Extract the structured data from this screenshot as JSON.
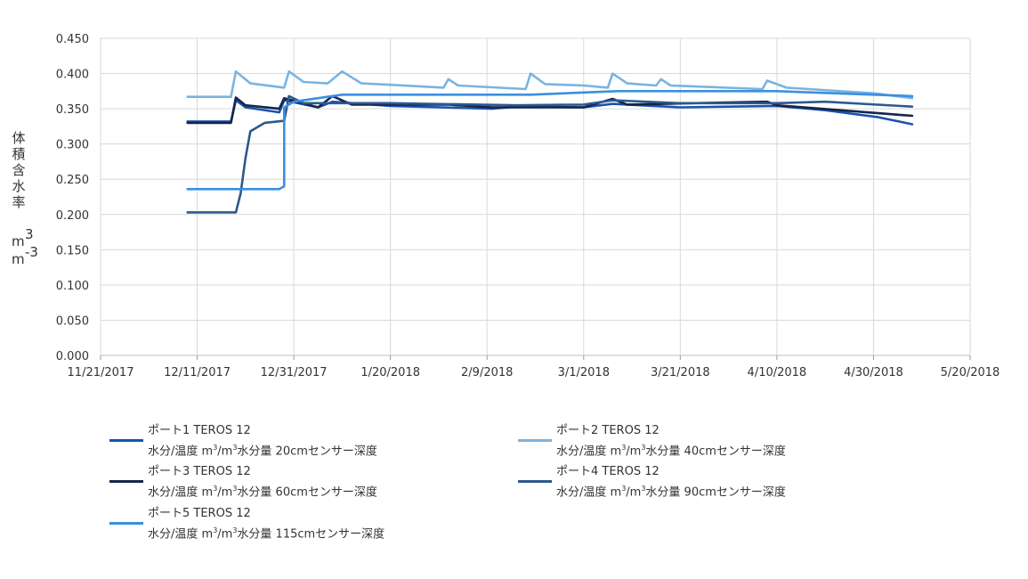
{
  "chart_data": {
    "type": "line",
    "ylabel": "体積含水率",
    "yunit_top": "m3",
    "yunit_bottom": "m-3",
    "ylim": [
      0.0,
      0.45
    ],
    "yticks": [
      "0.000",
      "0.050",
      "0.100",
      "0.150",
      "0.200",
      "0.250",
      "0.300",
      "0.350",
      "0.400",
      "0.450"
    ],
    "xlim": [
      "2017-11-21",
      "2018-05-20"
    ],
    "xticks": [
      "11/21/2017",
      "12/11/2017",
      "12/31/2017",
      "1/20/2018",
      "2/9/2018",
      "3/1/2018",
      "3/21/2018",
      "4/10/2018",
      "4/30/2018",
      "5/20/2018"
    ],
    "grid": true,
    "legend_position": "bottom",
    "series": [
      {
        "name": "ポート1 TEROS 12 水分/温度 m3/m3水分量 20cmセンサー深度",
        "color": "#1a53b0",
        "points": [
          [
            "2017-12-09",
            0.332
          ],
          [
            "2017-12-18",
            0.332
          ],
          [
            "2017-12-19",
            0.362
          ],
          [
            "2017-12-21",
            0.352
          ],
          [
            "2017-12-28",
            0.345
          ],
          [
            "2017-12-29",
            0.362
          ],
          [
            "2018-01-05",
            0.352
          ],
          [
            "2018-01-08",
            0.36
          ],
          [
            "2018-01-20",
            0.354
          ],
          [
            "2018-02-10",
            0.35
          ],
          [
            "2018-02-15",
            0.353
          ],
          [
            "2018-03-01",
            0.352
          ],
          [
            "2018-03-07",
            0.357
          ],
          [
            "2018-03-21",
            0.352
          ],
          [
            "2018-04-10",
            0.354
          ],
          [
            "2018-04-20",
            0.348
          ],
          [
            "2018-05-01",
            0.338
          ],
          [
            "2018-05-08",
            0.328
          ]
        ]
      },
      {
        "name": "ポート2 TEROS 12 水分/温度 m3/m3水分量 40cmセンサー深度",
        "color": "#7ab3e0",
        "points": [
          [
            "2017-12-09",
            0.367
          ],
          [
            "2017-12-18",
            0.367
          ],
          [
            "2017-12-19",
            0.403
          ],
          [
            "2017-12-22",
            0.386
          ],
          [
            "2017-12-29",
            0.38
          ],
          [
            "2017-12-30",
            0.403
          ],
          [
            "2018-01-02",
            0.388
          ],
          [
            "2018-01-07",
            0.386
          ],
          [
            "2018-01-10",
            0.403
          ],
          [
            "2018-01-14",
            0.386
          ],
          [
            "2018-01-20",
            0.384
          ],
          [
            "2018-01-31",
            0.38
          ],
          [
            "2018-02-01",
            0.392
          ],
          [
            "2018-02-03",
            0.383
          ],
          [
            "2018-02-17",
            0.378
          ],
          [
            "2018-02-18",
            0.4
          ],
          [
            "2018-02-21",
            0.385
          ],
          [
            "2018-03-01",
            0.383
          ],
          [
            "2018-03-06",
            0.38
          ],
          [
            "2018-03-07",
            0.4
          ],
          [
            "2018-03-10",
            0.386
          ],
          [
            "2018-03-16",
            0.383
          ],
          [
            "2018-03-17",
            0.392
          ],
          [
            "2018-03-19",
            0.383
          ],
          [
            "2018-04-07",
            0.378
          ],
          [
            "2018-04-08",
            0.39
          ],
          [
            "2018-04-12",
            0.38
          ],
          [
            "2018-04-30",
            0.372
          ],
          [
            "2018-05-08",
            0.365
          ]
        ]
      },
      {
        "name": "ポート3 TEROS 12 水分/温度 m3/m3水分量 60cmセンサー深度",
        "color": "#15244a",
        "points": [
          [
            "2017-12-09",
            0.33
          ],
          [
            "2017-12-18",
            0.33
          ],
          [
            "2017-12-19",
            0.366
          ],
          [
            "2017-12-21",
            0.355
          ],
          [
            "2017-12-28",
            0.35
          ],
          [
            "2017-12-29",
            0.365
          ],
          [
            "2018-01-05",
            0.352
          ],
          [
            "2018-01-08",
            0.368
          ],
          [
            "2018-01-12",
            0.356
          ],
          [
            "2018-02-01",
            0.356
          ],
          [
            "2018-02-10",
            0.352
          ],
          [
            "2018-03-01",
            0.352
          ],
          [
            "2018-03-07",
            0.364
          ],
          [
            "2018-03-10",
            0.356
          ],
          [
            "2018-04-08",
            0.36
          ],
          [
            "2018-04-10",
            0.355
          ],
          [
            "2018-05-08",
            0.34
          ]
        ]
      },
      {
        "name": "ポート4 TEROS 12 水分/温度 m3/m3水分量 90cmセンサー深度",
        "color": "#2b5a8c",
        "points": [
          [
            "2017-12-09",
            0.203
          ],
          [
            "2017-12-19",
            0.203
          ],
          [
            "2017-12-20",
            0.23
          ],
          [
            "2017-12-21",
            0.28
          ],
          [
            "2017-12-22",
            0.318
          ],
          [
            "2017-12-25",
            0.33
          ],
          [
            "2017-12-29",
            0.333
          ],
          [
            "2017-12-30",
            0.368
          ],
          [
            "2018-01-02",
            0.358
          ],
          [
            "2018-01-20",
            0.358
          ],
          [
            "2018-02-15",
            0.355
          ],
          [
            "2018-03-01",
            0.356
          ],
          [
            "2018-03-07",
            0.362
          ],
          [
            "2018-03-21",
            0.358
          ],
          [
            "2018-04-10",
            0.358
          ],
          [
            "2018-04-20",
            0.36
          ],
          [
            "2018-05-08",
            0.353
          ]
        ]
      },
      {
        "name": "ポート5 TEROS 12 水分/温度 m3/m3水分量 115cmセンサー深度",
        "color": "#3a8fe0",
        "points": [
          [
            "2017-12-09",
            0.236
          ],
          [
            "2017-12-28",
            0.236
          ],
          [
            "2017-12-29",
            0.24
          ],
          [
            "2017-12-29",
            0.352
          ],
          [
            "2017-12-31",
            0.36
          ],
          [
            "2018-01-05",
            0.365
          ],
          [
            "2018-01-10",
            0.37
          ],
          [
            "2018-02-18",
            0.37
          ],
          [
            "2018-03-08",
            0.375
          ],
          [
            "2018-04-10",
            0.375
          ],
          [
            "2018-05-08",
            0.368
          ]
        ]
      }
    ]
  },
  "legend": [
    {
      "line1": "ポート1 TEROS 12",
      "pre": "水分/温度 m",
      "mid": "/m",
      "post": "水分量 20cmセンサー深度",
      "sup": "3"
    },
    {
      "line1": "ポート2 TEROS 12",
      "pre": "水分/温度 m",
      "mid": "/m",
      "post": "水分量 40cmセンサー深度",
      "sup": "3"
    },
    {
      "line1": "ポート3 TEROS 12",
      "pre": "水分/温度 m",
      "mid": "/m",
      "post": "水分量 60cmセンサー深度",
      "sup": "3"
    },
    {
      "line1": "ポート4 TEROS 12",
      "pre": "水分/温度 m",
      "mid": "/m",
      "post": "水分量 90cmセンサー深度",
      "sup": "3"
    },
    {
      "line1": "ポート5 TEROS 12",
      "pre": "水分/温度 m",
      "mid": "/m",
      "post": "水分量 115cmセンサー深度",
      "sup": "3"
    }
  ]
}
